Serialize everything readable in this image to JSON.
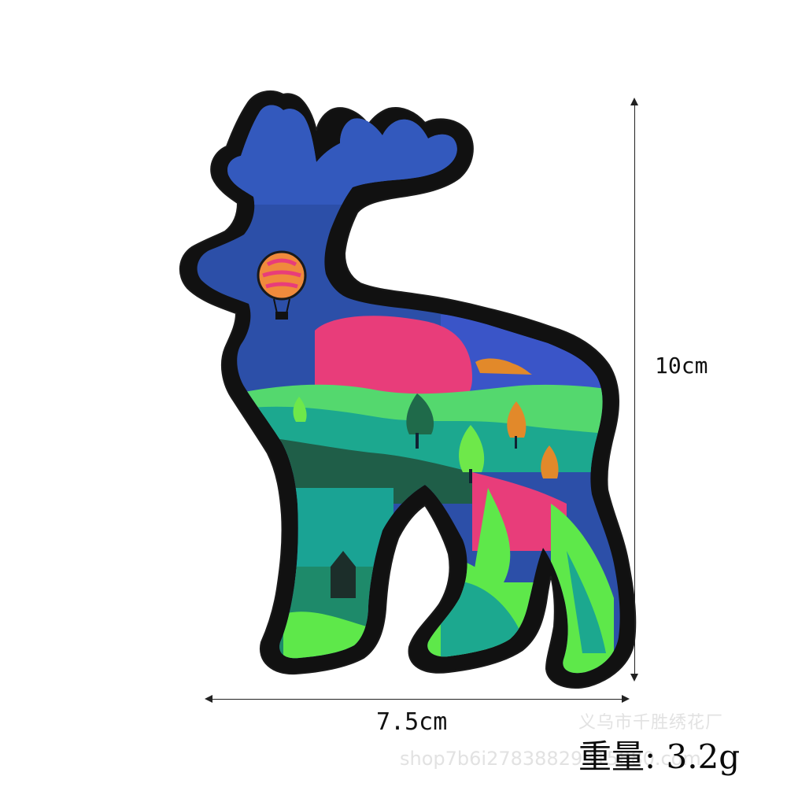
{
  "dimensions": {
    "height": "10cm",
    "width": "7.5cm"
  },
  "weight": "重量: 3.2g",
  "watermarks": {
    "maker": "义乌市千胜绣花厂",
    "shop": "shop7b6i27838829315880.com"
  },
  "patch": {
    "subject": "deer-patch",
    "colors": {
      "border": "#111111",
      "antler_blue": "#2f56b8",
      "head_blue": "#2c4fa8",
      "pink": "#e83d7a",
      "sky_blue": "#3a55c8",
      "green_light": "#5ee84a",
      "green_teal": "#1ca88f",
      "green_dark": "#1f5e48",
      "balloon_orange": "#f08a3c",
      "tree_orange": "#e2892a"
    }
  }
}
